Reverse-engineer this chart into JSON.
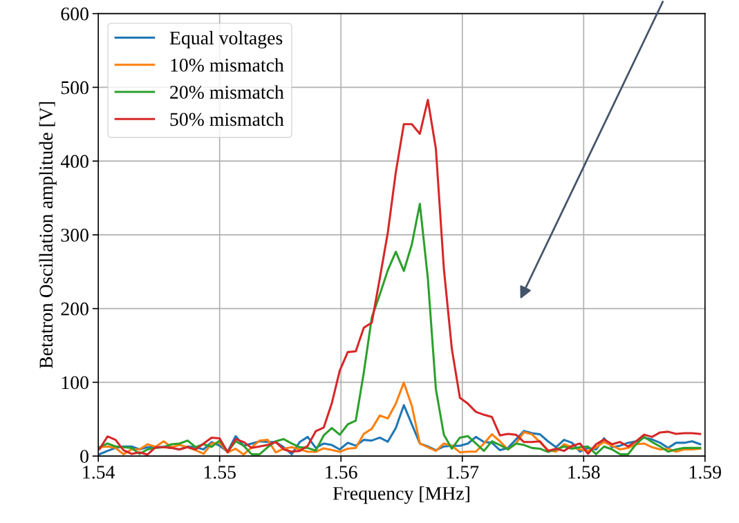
{
  "chart_data": {
    "type": "line",
    "xlabel": "Frequency [MHz]",
    "ylabel": "Betatron Oscillation amplitude [V]",
    "x": [
      1.5401,
      1.54076,
      1.54142,
      1.54208,
      1.54274,
      1.5434,
      1.54406,
      1.54472,
      1.54538,
      1.54604,
      1.5467,
      1.54736,
      1.54802,
      1.54868,
      1.54934,
      1.55,
      1.55066,
      1.55132,
      1.55198,
      1.55264,
      1.5533,
      1.55396,
      1.55462,
      1.55528,
      1.55594,
      1.5566,
      1.55726,
      1.55792,
      1.55858,
      1.55924,
      1.5599,
      1.56056,
      1.56122,
      1.56188,
      1.56254,
      1.5632,
      1.56386,
      1.56452,
      1.56518,
      1.56584,
      1.5665,
      1.56716,
      1.56782,
      1.56848,
      1.56914,
      1.5698,
      1.57046,
      1.57112,
      1.57178,
      1.57244,
      1.5731,
      1.57376,
      1.57442,
      1.57508,
      1.57574,
      1.5764,
      1.57706,
      1.57772,
      1.57838,
      1.57904,
      1.5797,
      1.58036,
      1.58102,
      1.58168,
      1.58234,
      1.583,
      1.58366,
      1.58432,
      1.58498,
      1.58564,
      1.5863,
      1.58696,
      1.58762,
      1.58828,
      1.58894,
      1.5896
    ],
    "series": [
      {
        "name": "Equal voltages",
        "color": "#1f77b4",
        "values": [
          2.5,
          7,
          11,
          13,
          13,
          9,
          12,
          12,
          12.5,
          11,
          9,
          13,
          12,
          9,
          19,
          14,
          6,
          27,
          14,
          17,
          20,
          19,
          19,
          12,
          2.5,
          19,
          26,
          11,
          17,
          15,
          9,
          18,
          14,
          22,
          21,
          25,
          19.5,
          38,
          69,
          43,
          17,
          13,
          8,
          13,
          14,
          14,
          17,
          26,
          19,
          18,
          8,
          11,
          22.5,
          34,
          31,
          29.5,
          20,
          12,
          22,
          18,
          6,
          11,
          9,
          24,
          12,
          14,
          18,
          20,
          25,
          22.5,
          18,
          11,
          18,
          18,
          20,
          16
        ]
      },
      {
        "name": "10% mismatch",
        "color": "#ff7f0e",
        "values": [
          12,
          13,
          11,
          2.5,
          9,
          9,
          16,
          12.5,
          20,
          12,
          15,
          12,
          8,
          3,
          17,
          18,
          5,
          10,
          2,
          12,
          21,
          22,
          5,
          10,
          12,
          9,
          6,
          5.7,
          10.5,
          8.3,
          5.7,
          10,
          11,
          30,
          37,
          55,
          51,
          71,
          99.5,
          68,
          17,
          12,
          7,
          17,
          14,
          5,
          6,
          6,
          17,
          29.5,
          20,
          9,
          17,
          32.5,
          29.5,
          19,
          8,
          6,
          16,
          12,
          9,
          7,
          12,
          19,
          14,
          9,
          11,
          16,
          17,
          12,
          9,
          10,
          6,
          9,
          9,
          10
        ]
      },
      {
        "name": "20% mismatch",
        "color": "#2ca02c",
        "values": [
          12,
          17,
          13,
          12,
          11,
          3,
          9,
          11,
          12,
          16,
          17,
          21,
          12,
          16,
          12.5,
          21,
          6,
          20,
          14,
          2.5,
          2.5,
          12,
          20,
          23,
          17,
          12,
          11,
          7.3,
          28,
          38,
          29,
          43,
          48,
          113,
          188,
          219,
          252,
          277,
          251,
          287,
          342,
          241,
          91,
          29,
          10,
          25,
          27,
          17,
          7,
          20,
          15,
          9,
          17,
          15,
          11,
          10,
          5.6,
          9,
          13,
          10,
          12,
          13,
          2.5,
          13,
          9,
          2.5,
          2.5,
          16,
          26,
          19,
          13,
          6,
          9,
          11,
          11,
          11
        ]
      },
      {
        "name": "50% mismatch",
        "color": "#d62728",
        "values": [
          9.4,
          26.6,
          22,
          8,
          3,
          5,
          2,
          12,
          12,
          11,
          9,
          12,
          9,
          17,
          25,
          24,
          5,
          23,
          19,
          11,
          13,
          15,
          19,
          9,
          6,
          7,
          14,
          33.6,
          38.7,
          71.3,
          116,
          141,
          142,
          174,
          181,
          241,
          303,
          385,
          450,
          450,
          437,
          483,
          417,
          254,
          145,
          79,
          71,
          60,
          56,
          53,
          28,
          30,
          29,
          19,
          19,
          20,
          7,
          10,
          7,
          14,
          17,
          3,
          16,
          22.5,
          16,
          19,
          13,
          20,
          29,
          26,
          32,
          33,
          30,
          31,
          31,
          30
        ]
      }
    ],
    "xlim": [
      1.54,
      1.59
    ],
    "xticks": [
      1.54,
      1.55,
      1.56,
      1.57,
      1.58,
      1.59
    ],
    "ylim": [
      0,
      600
    ],
    "yticks": [
      0,
      100,
      200,
      300,
      400,
      500,
      600
    ],
    "grid": true,
    "legend": "top left",
    "marker": "none",
    "line_style": "solid"
  }
}
